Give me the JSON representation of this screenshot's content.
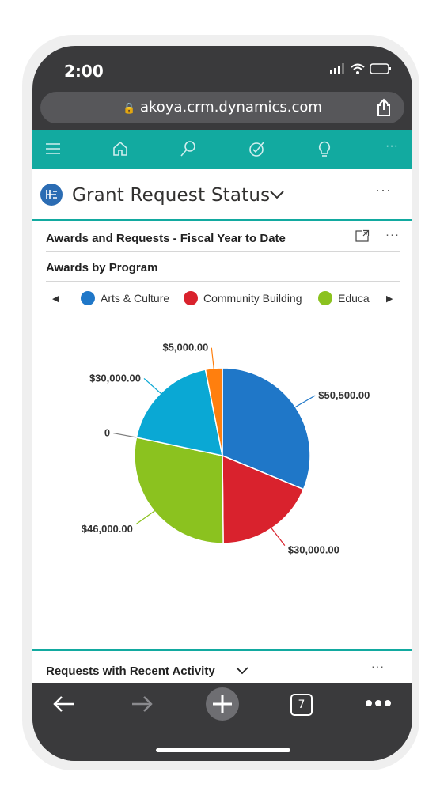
{
  "status_bar": {
    "time": "2:00"
  },
  "browser": {
    "url": "akoya.crm.dynamics.com",
    "tab_count": "7"
  },
  "nav": {
    "icons": [
      "menu-icon",
      "home-icon",
      "search-icon",
      "tasks-icon",
      "lightbulb-icon",
      "more-icon"
    ],
    "more_label": "···"
  },
  "page": {
    "title": "Grant Request Status",
    "more_label": "···"
  },
  "card": {
    "title": "Awards and Requests - Fiscal Year to Date",
    "more_label": "···",
    "chart_title": "Awards by Program"
  },
  "legend": {
    "items": [
      {
        "label": "Arts & Culture",
        "color": "#1f77c8"
      },
      {
        "label": "Community Building",
        "color": "#d9222d"
      },
      {
        "label": "Educa",
        "color": "#8bc21f"
      }
    ]
  },
  "chart_data": {
    "type": "pie",
    "title": "Awards by Program",
    "series": [
      {
        "name": "Arts & Culture",
        "value": 50500,
        "label": "$50,500.00",
        "color": "#1f77c8"
      },
      {
        "name": "Community Building",
        "value": 30000,
        "label": "$30,000.00",
        "color": "#d9222d"
      },
      {
        "name": "Educa",
        "value": 46000,
        "label": "$46,000.00",
        "color": "#8bc21f"
      },
      {
        "name": "",
        "value": 0,
        "label": "0",
        "color": "#7f7f7f"
      },
      {
        "name": "",
        "value": 30000,
        "label": "$30,000.00",
        "color": "#0aa8d4"
      },
      {
        "name": "",
        "value": 5000,
        "label": "$5,000.00",
        "color": "#ff7f0e"
      }
    ]
  },
  "card2": {
    "title": "Requests with Recent Activity",
    "more_label": "···"
  }
}
